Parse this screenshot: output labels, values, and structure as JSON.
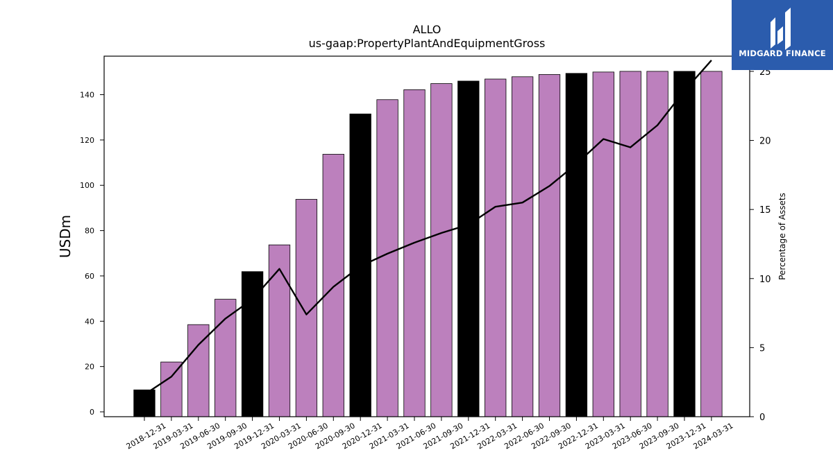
{
  "chart_data": {
    "type": "bar",
    "title": "ALLO",
    "subtitle": "us-gaap:PropertyPlantAndEquipmentGross",
    "ylabel": "USDm",
    "y2label": "Percentage of Assets",
    "ylim": [
      0,
      157
    ],
    "y2lim": [
      0,
      26.1
    ],
    "yticks": [
      0,
      20,
      40,
      60,
      80,
      100,
      120,
      140
    ],
    "y2ticks": [
      0,
      5,
      10,
      15,
      20,
      25
    ],
    "categories": [
      "2018-12-31",
      "2019-03-31",
      "2019-06-30",
      "2019-09-30",
      "2019-12-31",
      "2020-03-31",
      "2020-06-30",
      "2020-09-30",
      "2020-12-31",
      "2021-03-31",
      "2021-06-30",
      "2021-09-30",
      "2021-12-31",
      "2022-03-31",
      "2022-06-30",
      "2022-09-30",
      "2022-12-31",
      "2023-03-31",
      "2023-06-30",
      "2023-09-30",
      "2023-12-31",
      "2024-03-31"
    ],
    "series": [
      {
        "type": "bar",
        "axis": "left",
        "values": [
          9.7,
          22.0,
          38.5,
          49.7,
          61.9,
          73.7,
          93.8,
          113.7,
          131.5,
          137.8,
          142.2,
          144.9,
          146.0,
          146.9,
          147.9,
          148.9,
          149.4,
          150.0,
          150.3,
          150.3,
          150.3,
          150.3
        ],
        "year_end_color": "#000000",
        "quarter_color": "#bc80bd"
      },
      {
        "type": "line",
        "axis": "right",
        "values": [
          1.6,
          2.9,
          5.2,
          7.1,
          8.5,
          10.7,
          7.4,
          9.4,
          10.9,
          11.8,
          12.6,
          13.3,
          13.9,
          15.2,
          15.5,
          16.7,
          18.3,
          20.1,
          19.5,
          21.1,
          23.6,
          25.8
        ],
        "color": "#000000"
      }
    ]
  },
  "logo": {
    "text": "MIDGARD FINANCE",
    "bg_color": "#2b5cad"
  }
}
